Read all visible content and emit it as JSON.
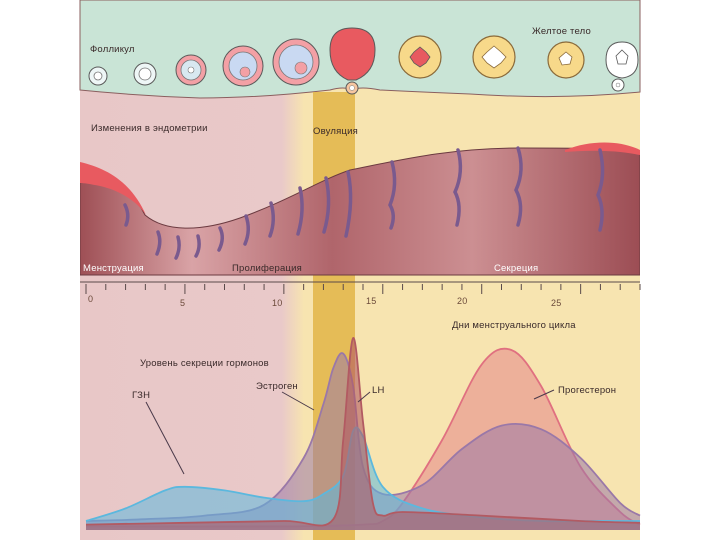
{
  "labels": {
    "follicle": "Фолликул",
    "corpus_luteum": "Желтое тело",
    "endometrium": "Изменения в эндометрии",
    "ovulation": "Овуляция",
    "menstruation": "Менструация",
    "proliferation": "Пролиферация",
    "secretion": "Секреция",
    "cycle_days": "Дни менструального цикла",
    "hormone_level": "Уровень секреции гормонов",
    "fsh": "ГЗН",
    "estrogen": "Эстроген",
    "lh": "LH",
    "progesterone": "Прогестерон"
  },
  "day_ticks": [
    "0",
    "5",
    "10",
    "15",
    "20",
    "25"
  ],
  "colors": {
    "ovary_band": "#c9e4d6",
    "menstrual_phase": "#e9c9c9",
    "luteal_phase": "#f7e4b0",
    "ovulation_band": "#e2b548",
    "endometrium": "#a8595e",
    "gland": "#7a5a8e",
    "fsh": "#5bb8de",
    "estrogen": "#9a78a8",
    "lh": "#b25a62",
    "progesterone": "#e07080"
  },
  "chart_data": {
    "type": "line",
    "title": "Уровень секреции гормонов",
    "xlabel": "Дни менструального цикла",
    "ylabel": "",
    "xlim": [
      0,
      28
    ],
    "ylim": [
      0,
      100
    ],
    "series": [
      {
        "name": "ГЗН",
        "color": "#5bb8de",
        "x": [
          0,
          2,
          4,
          5,
          7,
          9,
          11,
          12,
          13,
          13.5,
          14,
          15,
          17,
          20,
          23,
          26,
          28
        ],
        "y": [
          5,
          12,
          22,
          24,
          22,
          18,
          16,
          20,
          30,
          55,
          52,
          24,
          12,
          7,
          5,
          5,
          5
        ]
      },
      {
        "name": "Эстроген",
        "color": "#9a78a8",
        "x": [
          0,
          3,
          6,
          9,
          11,
          12,
          12.5,
          13,
          13.5,
          14,
          15,
          17,
          19,
          21,
          23,
          25,
          27,
          28
        ],
        "y": [
          5,
          6,
          8,
          14,
          40,
          70,
          90,
          98,
          80,
          35,
          20,
          25,
          45,
          58,
          56,
          40,
          15,
          8
        ]
      },
      {
        "name": "LH",
        "color": "#b25a62",
        "x": [
          0,
          5,
          10,
          12.5,
          13,
          13.5,
          14,
          14.5,
          15,
          16,
          20,
          25,
          28
        ],
        "y": [
          3,
          4,
          5,
          6,
          50,
          110,
          60,
          15,
          8,
          10,
          8,
          5,
          4
        ]
      },
      {
        "name": "Прогестерон",
        "color": "#e07080",
        "x": [
          0,
          10,
          14,
          15,
          16,
          18,
          20,
          21.5,
          23,
          25,
          27,
          28
        ],
        "y": [
          2,
          2,
          3,
          5,
          15,
          50,
          92,
          100,
          80,
          35,
          10,
          3
        ]
      }
    ]
  }
}
